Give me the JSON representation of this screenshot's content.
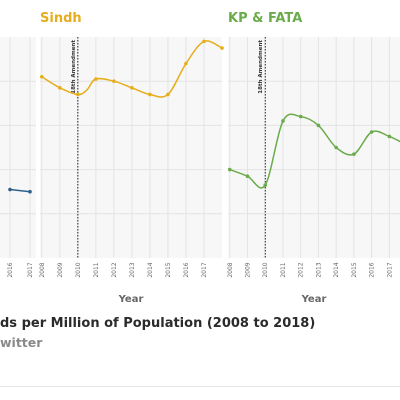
{
  "chart_data": [
    {
      "type": "line",
      "title": "",
      "xlabel": "",
      "x": [
        2016,
        2017
      ],
      "series": [
        {
          "color": "#2c5f8a",
          "values": [
            0.31,
            0.3
          ]
        }
      ],
      "ylim": [
        0,
        1
      ],
      "x_tick_labels": [
        "2016",
        "2017"
      ]
    },
    {
      "type": "line",
      "title": "Sindh",
      "xlabel": "Year",
      "x": [
        2008,
        2009,
        2010,
        2010.5,
        2011,
        2012,
        2013,
        2014,
        2015,
        2016,
        2017,
        2018
      ],
      "series": [
        {
          "color": "#e6ad1c",
          "values": [
            0.82,
            0.77,
            0.74,
            0.76,
            0.81,
            0.8,
            0.77,
            0.74,
            0.74,
            0.88,
            0.98,
            0.95
          ]
        }
      ],
      "ylim": [
        0,
        1
      ],
      "x_tick_labels": [
        "2008",
        "2009",
        "2010",
        "2011",
        "2012",
        "2013",
        "2014",
        "2015",
        "2016",
        "2017"
      ],
      "annotation": {
        "label": "18th Amendment",
        "x": 2010
      }
    },
    {
      "type": "line",
      "title": "KP & FATA",
      "xlabel": "Year",
      "x": [
        2008,
        2009,
        2010,
        2011,
        2012,
        2013,
        2014,
        2015,
        2016,
        2017,
        2018
      ],
      "series": [
        {
          "color": "#6aab4a",
          "values": [
            0.4,
            0.37,
            0.33,
            0.62,
            0.64,
            0.6,
            0.5,
            0.47,
            0.57,
            0.55,
            0.51
          ]
        }
      ],
      "ylim": [
        0,
        1
      ],
      "x_tick_labels": [
        "2008",
        "2009",
        "2010",
        "2011",
        "2012",
        "2013",
        "2014",
        "2015",
        "2016",
        "2017"
      ],
      "annotation": {
        "label": "18th Amendment",
        "x": 2010
      }
    }
  ],
  "footer": {
    "title": "ds per Million of Population (2008 to 2018)",
    "subtitle": "witter"
  }
}
